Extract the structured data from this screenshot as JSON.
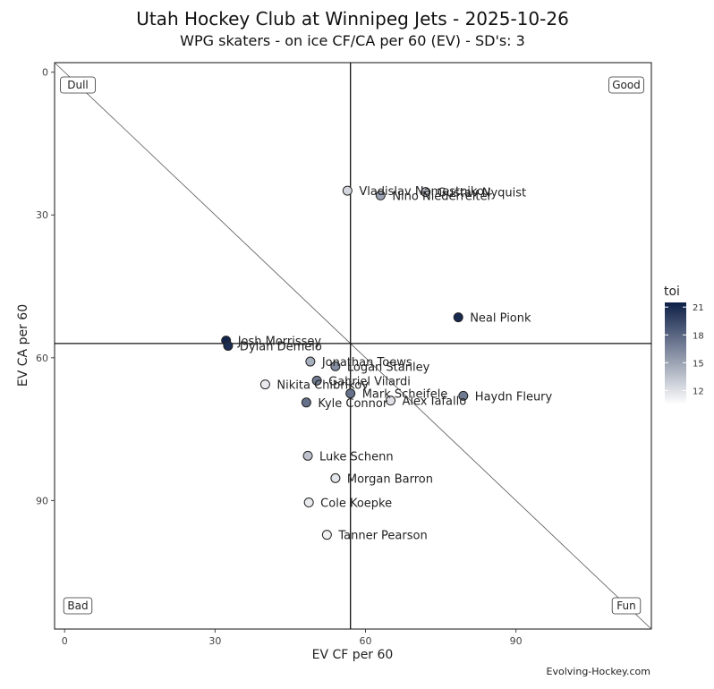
{
  "chart_data": {
    "type": "scatter",
    "title": "Utah Hockey Club at Winnipeg Jets - 2025-10-26",
    "subtitle": "WPG skaters - on ice CF/CA per 60 (EV) - SD's: 3",
    "xlabel": "EV CF per 60",
    "ylabel": "EV CA per 60",
    "xlim": [
      -2,
      117
    ],
    "ylim": [
      -2,
      117
    ],
    "y_reversed": true,
    "xticks": [
      0,
      30,
      60,
      90
    ],
    "yticks": [
      0,
      30,
      60,
      90
    ],
    "xtick_labels": [
      "0",
      "30",
      "60",
      "90"
    ],
    "ytick_labels": [
      "0",
      "30",
      "60",
      "90"
    ],
    "mean_x": 57,
    "mean_y": 57,
    "grid": false,
    "corner_labels": {
      "top_left": "Dull",
      "top_right": "Good",
      "bottom_left": "Bad",
      "bottom_right": "Fun"
    },
    "legend": {
      "title": "toi",
      "position": "right",
      "min": 10.5,
      "max": 21.5,
      "ticks": [
        12,
        15,
        18,
        21
      ],
      "tick_labels": [
        "12",
        "15",
        "18",
        "21"
      ],
      "color_low": "#ffffff",
      "color_high": "#0d1f47"
    },
    "points": [
      {
        "name": "Vladislav Namestnikov",
        "x": 56.4,
        "y": 24.9,
        "toi": 12.5
      },
      {
        "name": "Gustav Nyquist",
        "x": 72.0,
        "y": 25.2,
        "toi": 13.5
      },
      {
        "name": "Nino Niederreiter",
        "x": 63.0,
        "y": 25.9,
        "toi": 15.0
      },
      {
        "name": "Neal Pionk",
        "x": 78.5,
        "y": 51.5,
        "toi": 21.0
      },
      {
        "name": "Josh Morrissey",
        "x": 32.2,
        "y": 56.4,
        "toi": 21.2
      },
      {
        "name": "Dylan Demelo",
        "x": 32.6,
        "y": 57.5,
        "toi": 20.8
      },
      {
        "name": "Jonathan Toews",
        "x": 49.0,
        "y": 60.8,
        "toi": 14.5
      },
      {
        "name": "Logan Stanley",
        "x": 54.0,
        "y": 61.8,
        "toi": 16.0
      },
      {
        "name": "Gabriel Vilardi",
        "x": 50.3,
        "y": 64.8,
        "toi": 17.0
      },
      {
        "name": "Nikita Chibrikov",
        "x": 40.0,
        "y": 65.6,
        "toi": 11.5
      },
      {
        "name": "Mark Scheifele",
        "x": 57.0,
        "y": 67.5,
        "toi": 17.5
      },
      {
        "name": "Alex Iafallo",
        "x": 65.0,
        "y": 69.0,
        "toi": 12.0
      },
      {
        "name": "Haydn Fleury",
        "x": 79.5,
        "y": 68.0,
        "toi": 17.0
      },
      {
        "name": "Kyle Connor",
        "x": 48.2,
        "y": 69.4,
        "toi": 17.5
      },
      {
        "name": "Luke Schenn",
        "x": 48.5,
        "y": 80.6,
        "toi": 13.5
      },
      {
        "name": "Morgan Barron",
        "x": 54.0,
        "y": 85.3,
        "toi": 11.8
      },
      {
        "name": "Cole Koepke",
        "x": 48.7,
        "y": 90.4,
        "toi": 11.5
      },
      {
        "name": "Tanner Pearson",
        "x": 52.3,
        "y": 97.2,
        "toi": 11.2
      }
    ],
    "source": "Evolving-Hockey.com"
  }
}
